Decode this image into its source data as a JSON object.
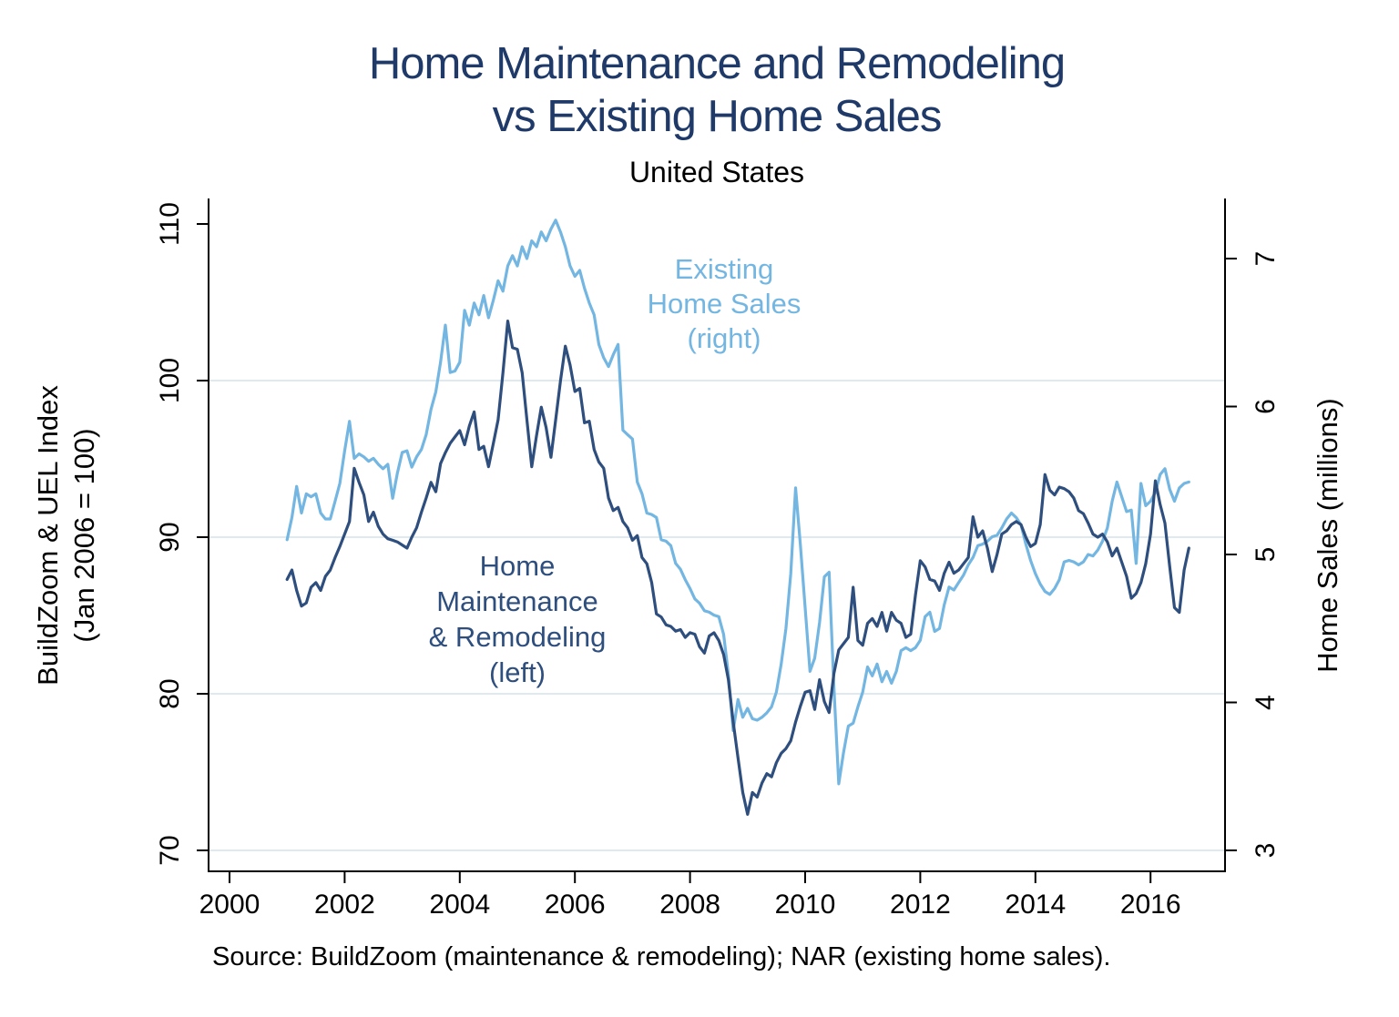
{
  "page": {
    "title_line1": "Home Maintenance and Remodeling",
    "title_line2": "vs Existing Home Sales",
    "title_color": "#1f3a68",
    "subtitle": "United States",
    "source_note": "Source: BuildZoom (maintenance & remodeling); NAR (existing home sales)."
  },
  "chart_data": {
    "type": "line",
    "title": "Home Maintenance and Remodeling vs Existing Home Sales",
    "subtitle": "United States",
    "x_start_year": 2001.0,
    "x_step": "monthly",
    "x_ticks": [
      2000,
      2002,
      2004,
      2006,
      2008,
      2010,
      2012,
      2014,
      2016
    ],
    "grid_on": true,
    "gridlines_at_left_values": [
      70,
      80,
      90,
      100
    ],
    "grid_color": "#dfeaf0",
    "left_axis": {
      "label_line1": "BuildZoom & UEL Index",
      "label_line2": "(Jan 2006 = 100)",
      "ticks": [
        70,
        80,
        90,
        100,
        110
      ],
      "range": [
        68.6,
        111.6
      ]
    },
    "right_axis": {
      "label": "Home Sales (millions)",
      "ticks": [
        3,
        4,
        5,
        6,
        7
      ],
      "range": [
        2.86,
        7.4
      ]
    },
    "series": [
      {
        "name": "Existing Home Sales",
        "axis": "right",
        "color": "#73b6e2",
        "values": [
          5.1,
          5.25,
          5.46,
          5.28,
          5.41,
          5.39,
          5.41,
          5.28,
          5.24,
          5.24,
          5.36,
          5.48,
          5.7,
          5.9,
          5.65,
          5.68,
          5.66,
          5.63,
          5.65,
          5.61,
          5.58,
          5.61,
          5.38,
          5.55,
          5.69,
          5.7,
          5.59,
          5.66,
          5.71,
          5.81,
          5.98,
          6.1,
          6.3,
          6.55,
          6.23,
          6.24,
          6.3,
          6.65,
          6.55,
          6.7,
          6.62,
          6.75,
          6.6,
          6.72,
          6.85,
          6.78,
          6.95,
          7.02,
          6.95,
          7.08,
          7.0,
          7.12,
          7.08,
          7.18,
          7.12,
          7.2,
          7.26,
          7.18,
          7.08,
          6.95,
          6.88,
          6.92,
          6.8,
          6.7,
          6.62,
          6.42,
          6.33,
          6.27,
          6.35,
          6.42,
          5.84,
          5.81,
          5.78,
          5.49,
          5.41,
          5.28,
          5.27,
          5.25,
          5.1,
          5.09,
          5.06,
          4.94,
          4.9,
          4.83,
          4.77,
          4.7,
          4.67,
          4.62,
          4.61,
          4.59,
          4.58,
          4.46,
          4.19,
          3.81,
          4.02,
          3.9,
          3.96,
          3.89,
          3.88,
          3.9,
          3.93,
          3.97,
          4.07,
          4.26,
          4.5,
          4.87,
          5.45,
          5.07,
          4.64,
          4.21,
          4.3,
          4.54,
          4.85,
          4.88,
          4.1,
          3.45,
          3.66,
          3.84,
          3.86,
          3.97,
          4.07,
          4.24,
          4.18,
          4.26,
          4.14,
          4.21,
          4.13,
          4.21,
          4.35,
          4.37,
          4.35,
          4.37,
          4.42,
          4.58,
          4.61,
          4.48,
          4.5,
          4.66,
          4.78,
          4.76,
          4.81,
          4.86,
          4.93,
          4.98,
          5.06,
          5.07,
          5.09,
          5.12,
          5.13,
          5.18,
          5.24,
          5.28,
          5.25,
          5.2,
          5.07,
          4.96,
          4.87,
          4.8,
          4.75,
          4.73,
          4.77,
          4.83,
          4.95,
          4.96,
          4.95,
          4.93,
          4.95,
          5.0,
          4.99,
          5.03,
          5.09,
          5.18,
          5.36,
          5.49,
          5.39,
          5.29,
          5.3,
          4.94,
          5.48,
          5.33,
          5.36,
          5.42,
          5.54,
          5.58,
          5.44,
          5.36,
          5.45,
          5.48,
          5.49
        ]
      },
      {
        "name": "Home Maintenance & Remodeling",
        "axis": "left",
        "color": "#2e4e7e",
        "values": [
          87.3,
          87.9,
          86.6,
          85.6,
          85.8,
          86.8,
          87.1,
          86.6,
          87.5,
          87.9,
          88.7,
          89.4,
          90.2,
          91.0,
          94.4,
          93.5,
          92.7,
          91.0,
          91.6,
          90.7,
          90.2,
          89.9,
          89.8,
          89.7,
          89.5,
          89.3,
          90.0,
          90.6,
          91.6,
          92.5,
          93.5,
          92.9,
          94.7,
          95.4,
          96.0,
          96.4,
          96.8,
          95.9,
          97.1,
          98.0,
          95.6,
          95.8,
          94.5,
          96.0,
          97.5,
          100.5,
          103.8,
          102.1,
          102.0,
          100.5,
          97.5,
          94.5,
          96.5,
          98.3,
          97.0,
          95.1,
          97.5,
          100.0,
          102.2,
          101.0,
          99.3,
          99.5,
          97.3,
          97.4,
          95.6,
          94.8,
          94.4,
          92.5,
          91.7,
          91.9,
          91.0,
          90.6,
          89.8,
          90.1,
          88.7,
          88.3,
          87.1,
          85.1,
          84.9,
          84.4,
          84.3,
          84.0,
          84.1,
          83.6,
          83.9,
          83.8,
          83.0,
          82.6,
          83.7,
          83.9,
          83.4,
          82.5,
          80.9,
          78.2,
          75.9,
          73.7,
          72.3,
          73.7,
          73.4,
          74.3,
          74.9,
          74.7,
          75.6,
          76.2,
          76.5,
          77.0,
          78.2,
          79.2,
          80.1,
          80.2,
          79.0,
          80.9,
          79.5,
          78.8,
          81.3,
          82.8,
          83.2,
          83.6,
          86.8,
          83.4,
          83.1,
          84.5,
          84.8,
          84.3,
          85.2,
          84.0,
          85.2,
          84.7,
          84.5,
          83.6,
          83.8,
          86.3,
          88.5,
          88.1,
          87.3,
          87.2,
          86.6,
          87.7,
          88.4,
          87.7,
          87.9,
          88.3,
          88.7,
          91.3,
          90.0,
          90.4,
          89.3,
          87.8,
          88.9,
          90.2,
          90.4,
          90.8,
          91.0,
          90.8,
          90.0,
          89.4,
          89.6,
          90.8,
          94.0,
          93.0,
          92.7,
          93.2,
          93.1,
          92.9,
          92.5,
          91.7,
          91.5,
          90.9,
          90.2,
          90.0,
          90.2,
          89.7,
          88.8,
          89.3,
          88.4,
          87.5,
          86.1,
          86.4,
          87.1,
          88.3,
          90.2,
          93.6,
          92.1,
          90.9,
          88.1,
          85.5,
          85.2,
          87.9,
          89.3
        ]
      }
    ],
    "annotations": [
      {
        "lines": [
          "Existing",
          "Home Sales",
          "(right)"
        ],
        "color": "#73b6e2"
      },
      {
        "lines": [
          "Home",
          "Maintenance",
          "& Remodeling",
          "(left)"
        ],
        "color": "#2e4e7e"
      }
    ],
    "source_note": "Source: BuildZoom (maintenance & remodeling); NAR (existing home sales)."
  }
}
